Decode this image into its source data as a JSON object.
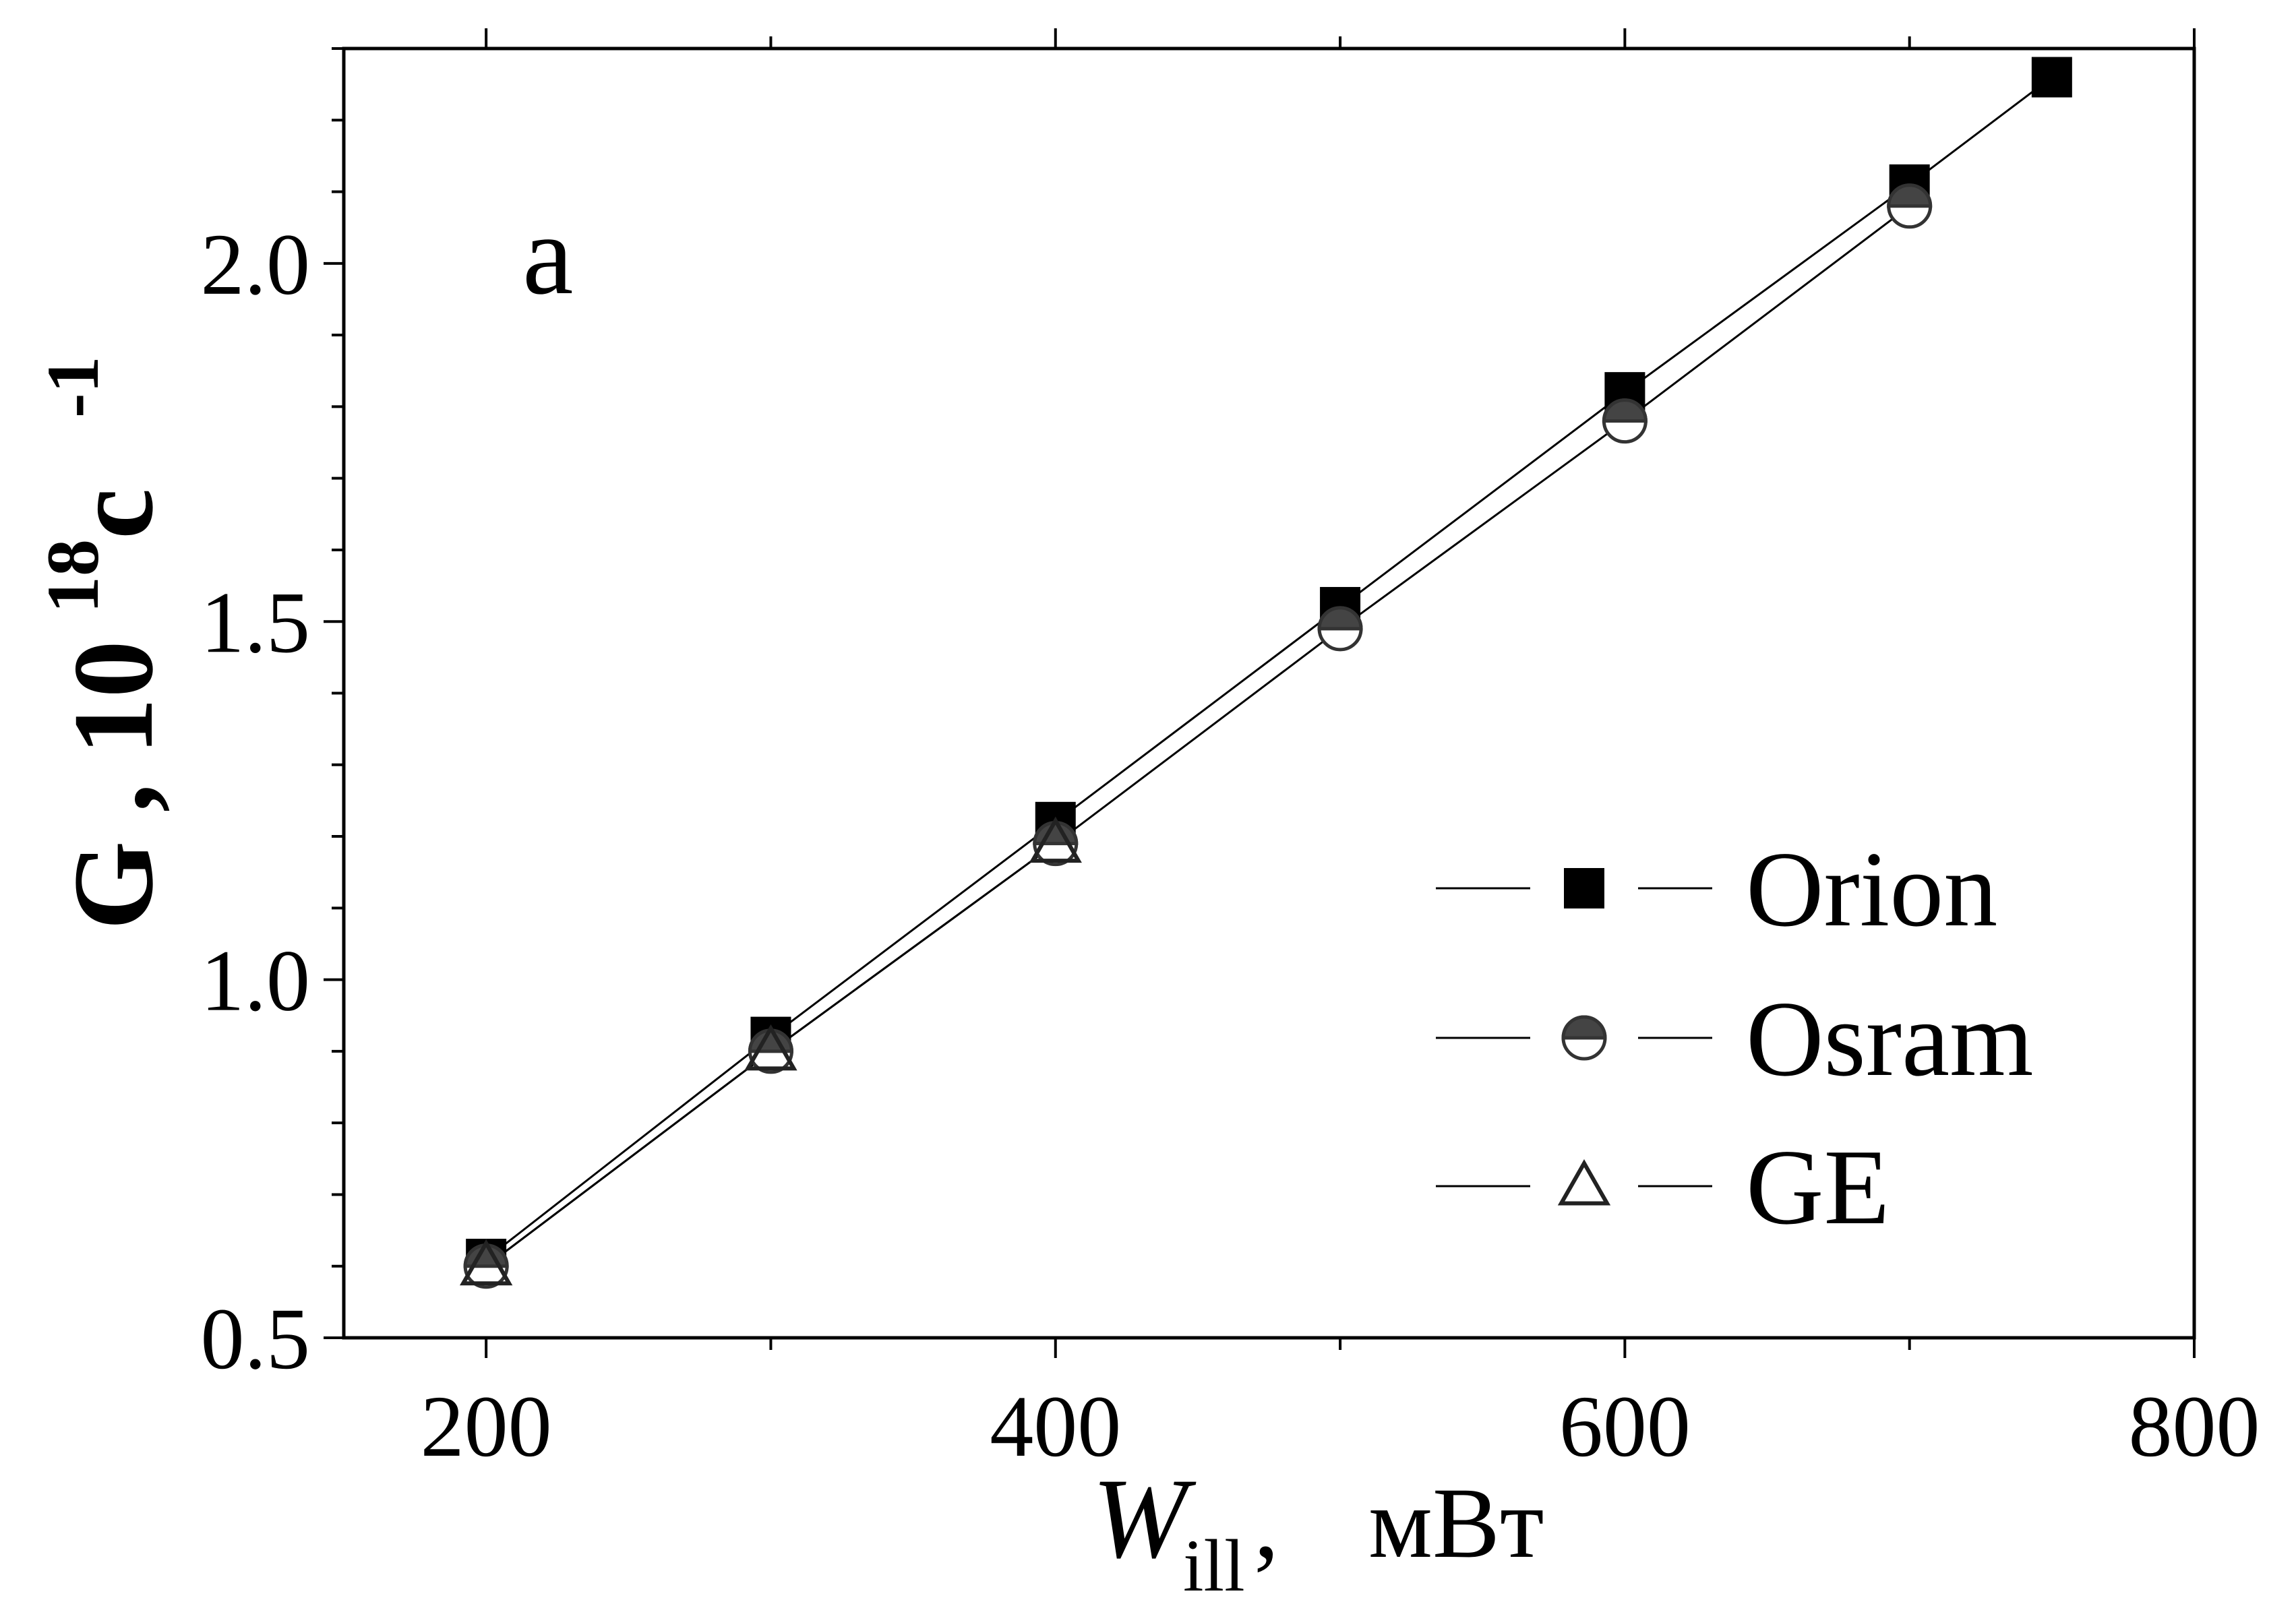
{
  "chart_data": {
    "type": "line",
    "panel_label": "a",
    "x": [
      200,
      300,
      400,
      500,
      600,
      700,
      750
    ],
    "xlim": [
      150,
      800
    ],
    "ylim": [
      0.5,
      2.3
    ],
    "xticks": [
      200,
      400,
      600,
      800
    ],
    "xtick_labels": [
      "200",
      "400",
      "600",
      "800"
    ],
    "yticks": [
      0.5,
      1.0,
      1.5,
      2.0
    ],
    "ytick_labels": [
      "0.5",
      "1.0",
      "1.5",
      "2.0"
    ],
    "xlabel": {
      "main": "W",
      "sub": "ill",
      "sep": " ,",
      "unit": "мВт"
    },
    "ylabel": {
      "main": "G , 10",
      "sup": "18",
      "mid": " c",
      "sup2": "-1"
    },
    "legend_position": "lower-right",
    "series": [
      {
        "name": "Orion",
        "marker": "filled-square",
        "x": [
          200,
          300,
          400,
          500,
          600,
          700,
          750
        ],
        "values": [
          0.61,
          0.92,
          1.22,
          1.52,
          1.82,
          2.11,
          2.26
        ]
      },
      {
        "name": "Osram",
        "marker": "half-filled-circle",
        "x": [
          200,
          300,
          400,
          500,
          600,
          700
        ],
        "values": [
          0.6,
          0.9,
          1.19,
          1.49,
          1.78,
          2.08
        ]
      },
      {
        "name": "GE",
        "marker": "open-triangle",
        "x": [
          200,
          300,
          400
        ],
        "values": [
          0.6,
          0.9,
          1.19
        ]
      }
    ],
    "grid": false
  }
}
